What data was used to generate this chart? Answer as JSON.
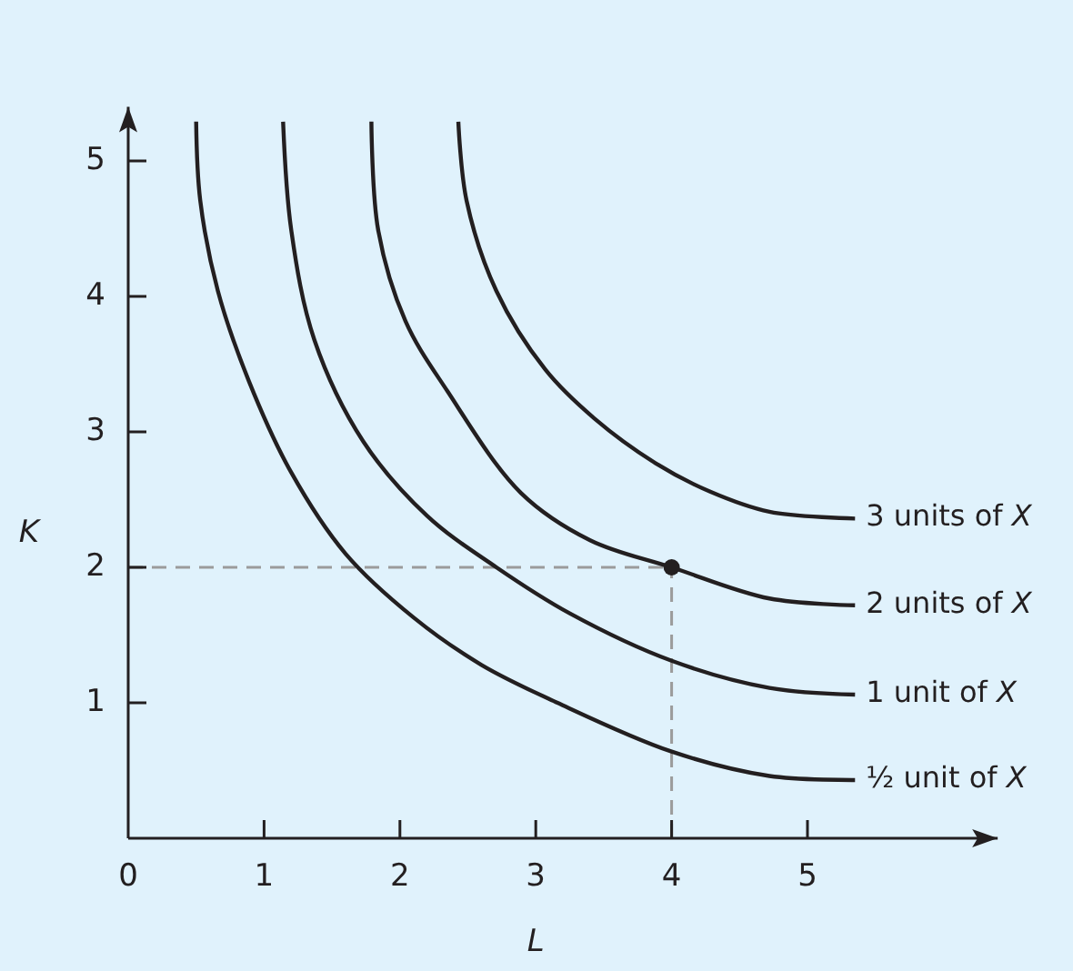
{
  "chart_data": {
    "type": "line",
    "xlabel": "L",
    "ylabel": "K",
    "xlim": [
      0,
      6.4
    ],
    "ylim": [
      0,
      5.4
    ],
    "xticks": [
      0,
      1,
      2,
      3,
      4,
      5
    ],
    "yticks": [
      1,
      2,
      3,
      4,
      5
    ],
    "series": [
      {
        "name": "½ unit of X",
        "color": "#231f20",
        "x": [
          0.5,
          0.53,
          0.66,
          0.89,
          1.2,
          1.6,
          2.1,
          2.6,
          3.16,
          4.0,
          4.72,
          5.35
        ],
        "values": [
          5.29,
          4.71,
          4.04,
          3.37,
          2.7,
          2.1,
          1.63,
          1.28,
          1.0,
          0.64,
          0.46,
          0.43
        ]
      },
      {
        "name": "1 unit of X",
        "color": "#231f20",
        "x": [
          1.14,
          1.2,
          1.37,
          1.73,
          2.2,
          2.71,
          3.25,
          4.0,
          4.72,
          5.35
        ],
        "values": [
          5.29,
          4.49,
          3.68,
          2.93,
          2.38,
          2.0,
          1.66,
          1.31,
          1.11,
          1.06
        ]
      },
      {
        "name": "2 units of X",
        "color": "#231f20",
        "x": [
          1.79,
          1.84,
          2.04,
          2.35,
          2.89,
          3.4,
          4.0,
          4.72,
          5.35
        ],
        "values": [
          5.29,
          4.49,
          3.82,
          3.3,
          2.55,
          2.2,
          2.0,
          1.77,
          1.72
        ]
      },
      {
        "name": "3 units of X",
        "color": "#231f20",
        "x": [
          2.43,
          2.49,
          2.71,
          3.07,
          3.43,
          3.88,
          4.28,
          4.72,
          5.35
        ],
        "values": [
          5.29,
          4.71,
          4.04,
          3.46,
          3.1,
          2.77,
          2.56,
          2.41,
          2.36
        ]
      },
      {
        "type": "scatter",
        "color": "#231f20",
        "x": [
          4
        ],
        "values": [
          2
        ]
      }
    ],
    "ref_lines": [
      {
        "axis": "y",
        "value": 2,
        "color": "#9b9b9b",
        "line_style": "dashed"
      },
      {
        "axis": "x",
        "value": 4,
        "color": "#9b9b9b",
        "line_style": "dashed"
      }
    ]
  }
}
